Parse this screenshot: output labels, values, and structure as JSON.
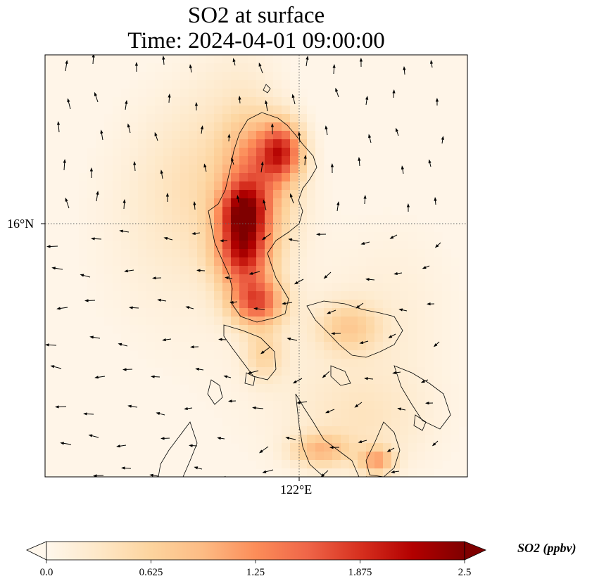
{
  "title": "SO2 at surface",
  "subtitle": "Time: 2024-04-01 09:00:00",
  "colors": {
    "cmap": [
      "#fff7ec",
      "#fee8c8",
      "#fdd49e",
      "#fdbb84",
      "#fc8d59",
      "#ef6548",
      "#d7301f",
      "#b30000",
      "#7f0000"
    ],
    "coastline": "#000000",
    "gridline": "#666666"
  },
  "chart_data": {
    "type": "heatmap",
    "title": "SO2 at surface",
    "subtitle": "Time: 2024-04-01 09:00:00",
    "projection": "map",
    "lat_tick_labels": [
      "16°N"
    ],
    "lon_tick_labels": [
      "122°E"
    ],
    "colorbar": {
      "label": "SO2 (ppbv)",
      "vmin": 0.0,
      "vmax": 2.5,
      "extend": "both",
      "ticks": [
        0.0,
        0.625,
        1.25,
        1.875,
        2.5
      ],
      "tick_labels": [
        "0.0",
        "0.625",
        "1.25",
        "1.875",
        "2.5"
      ]
    },
    "overlays": [
      "coastlines",
      "wind vectors",
      "dotted gridlines"
    ]
  }
}
